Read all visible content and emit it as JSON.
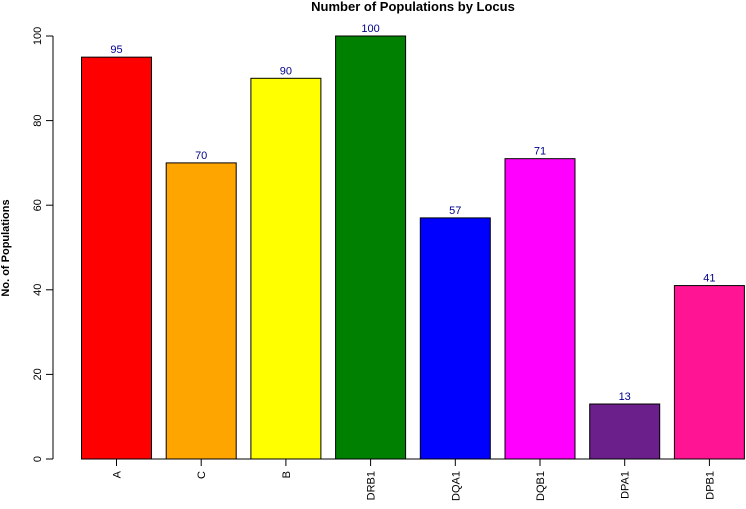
{
  "chart_data": {
    "type": "bar",
    "title": "Number of Populations by Locus",
    "xlabel": "",
    "ylabel": "No. of Populations",
    "categories": [
      "A",
      "C",
      "B",
      "DRB1",
      "DQA1",
      "DQB1",
      "DPA1",
      "DPB1"
    ],
    "values": [
      95,
      70,
      90,
      100,
      57,
      71,
      13,
      41
    ],
    "colors": [
      "#ff0000",
      "#ffa500",
      "#ffff00",
      "#008000",
      "#0000ff",
      "#ff00ff",
      "#6a1f8a",
      "#ff1493"
    ],
    "label_color": "#00008b",
    "ylim": [
      0,
      100
    ],
    "yticks": [
      0,
      20,
      40,
      60,
      80,
      100
    ],
    "grid": false,
    "legend": "none"
  }
}
